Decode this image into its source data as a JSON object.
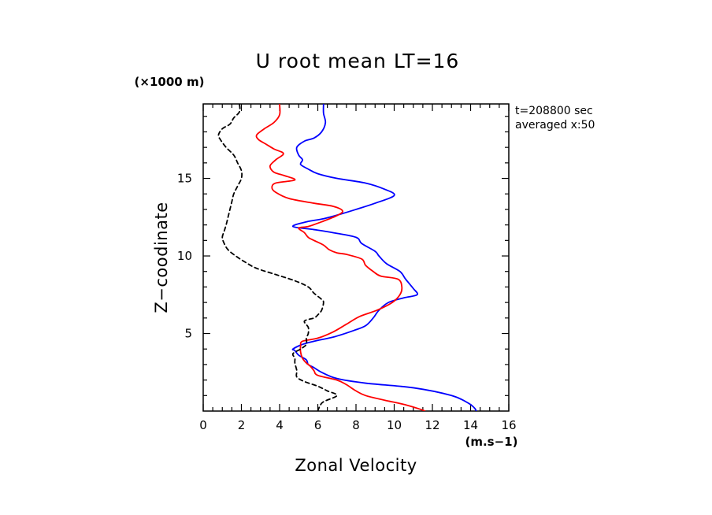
{
  "chart_data": {
    "type": "line",
    "title": "U root mean LT=16",
    "xlabel": "Zonal Velocity",
    "ylabel": "Z−coodinate",
    "x_unit": "(m.s−1)",
    "y_unit": "(×1000 m)",
    "xlim": [
      0,
      16
    ],
    "ylim": [
      0,
      19.8
    ],
    "x_ticks": [
      0,
      2,
      4,
      6,
      8,
      10,
      12,
      14,
      16
    ],
    "y_ticks": [
      5,
      10,
      15
    ],
    "annotations": [
      "t=208800 sec",
      "averaged  x:50"
    ],
    "series": [
      {
        "color": "#0000ff",
        "dash": "solid",
        "points": [
          [
            14.3,
            0.0
          ],
          [
            14.2,
            0.2
          ],
          [
            13.9,
            0.5
          ],
          [
            13.0,
            1.0
          ],
          [
            11.0,
            1.5
          ],
          [
            8.5,
            1.8
          ],
          [
            7.0,
            2.1
          ],
          [
            6.2,
            2.5
          ],
          [
            5.8,
            2.8
          ],
          [
            5.5,
            3.0
          ],
          [
            5.4,
            3.3
          ],
          [
            5.0,
            3.6
          ],
          [
            4.8,
            3.9
          ],
          [
            4.7,
            4.0
          ],
          [
            5.2,
            4.3
          ],
          [
            5.8,
            4.5
          ],
          [
            6.9,
            4.8
          ],
          [
            7.9,
            5.2
          ],
          [
            8.5,
            5.5
          ],
          [
            8.9,
            6.0
          ],
          [
            9.2,
            6.5
          ],
          [
            9.7,
            7.0
          ],
          [
            10.5,
            7.3
          ],
          [
            11.2,
            7.5
          ],
          [
            11.0,
            7.9
          ],
          [
            10.6,
            8.5
          ],
          [
            10.3,
            9.0
          ],
          [
            9.6,
            9.5
          ],
          [
            9.2,
            10.0
          ],
          [
            9.0,
            10.3
          ],
          [
            8.3,
            10.8
          ],
          [
            8.0,
            11.2
          ],
          [
            6.8,
            11.5
          ],
          [
            5.8,
            11.7
          ],
          [
            4.7,
            11.9
          ],
          [
            5.4,
            12.2
          ],
          [
            6.3,
            12.4
          ],
          [
            7.2,
            12.7
          ],
          [
            8.0,
            13.0
          ],
          [
            9.0,
            13.4
          ],
          [
            10.0,
            13.9
          ],
          [
            9.5,
            14.3
          ],
          [
            8.5,
            14.7
          ],
          [
            7.0,
            15.0
          ],
          [
            6.0,
            15.3
          ],
          [
            5.5,
            15.6
          ],
          [
            5.1,
            15.9
          ],
          [
            5.2,
            16.2
          ],
          [
            5.0,
            16.5
          ],
          [
            4.9,
            17.0
          ],
          [
            5.3,
            17.4
          ],
          [
            5.8,
            17.6
          ],
          [
            6.2,
            18.0
          ],
          [
            6.4,
            18.6
          ],
          [
            6.3,
            19.2
          ],
          [
            6.3,
            19.8
          ]
        ]
      },
      {
        "color": "#ff0000",
        "dash": "solid",
        "points": [
          [
            11.6,
            0.0
          ],
          [
            11.4,
            0.1
          ],
          [
            10.6,
            0.4
          ],
          [
            9.5,
            0.7
          ],
          [
            8.5,
            1.0
          ],
          [
            8.0,
            1.3
          ],
          [
            7.5,
            1.7
          ],
          [
            7.0,
            2.0
          ],
          [
            6.0,
            2.3
          ],
          [
            5.8,
            2.6
          ],
          [
            5.6,
            2.9
          ],
          [
            5.4,
            3.1
          ],
          [
            5.2,
            3.4
          ],
          [
            5.1,
            3.8
          ],
          [
            5.1,
            4.2
          ],
          [
            5.2,
            4.5
          ],
          [
            6.0,
            4.7
          ],
          [
            6.8,
            5.1
          ],
          [
            7.5,
            5.6
          ],
          [
            8.2,
            6.1
          ],
          [
            9.1,
            6.5
          ],
          [
            9.9,
            7.0
          ],
          [
            10.3,
            7.5
          ],
          [
            10.4,
            8.0
          ],
          [
            10.2,
            8.5
          ],
          [
            9.3,
            8.7
          ],
          [
            8.9,
            9.0
          ],
          [
            8.5,
            9.4
          ],
          [
            8.3,
            9.8
          ],
          [
            7.5,
            10.1
          ],
          [
            7.0,
            10.2
          ],
          [
            6.6,
            10.4
          ],
          [
            6.3,
            10.7
          ],
          [
            5.8,
            11.0
          ],
          [
            5.5,
            11.2
          ],
          [
            5.3,
            11.5
          ],
          [
            5.0,
            11.8
          ],
          [
            5.5,
            11.9
          ],
          [
            6.2,
            12.2
          ],
          [
            7.0,
            12.6
          ],
          [
            7.3,
            12.9
          ],
          [
            6.8,
            13.2
          ],
          [
            5.8,
            13.4
          ],
          [
            4.5,
            13.7
          ],
          [
            3.8,
            14.1
          ],
          [
            3.6,
            14.4
          ],
          [
            3.8,
            14.7
          ],
          [
            4.8,
            14.9
          ],
          [
            4.2,
            15.2
          ],
          [
            3.7,
            15.4
          ],
          [
            3.5,
            15.8
          ],
          [
            3.8,
            16.2
          ],
          [
            4.2,
            16.6
          ],
          [
            3.7,
            16.9
          ],
          [
            3.3,
            17.2
          ],
          [
            2.9,
            17.5
          ],
          [
            2.8,
            17.8
          ],
          [
            3.2,
            18.2
          ],
          [
            3.7,
            18.6
          ],
          [
            4.0,
            19.1
          ],
          [
            4.0,
            19.8
          ]
        ]
      },
      {
        "color": "#000000",
        "dash": "dashed",
        "points": [
          [
            6.0,
            0.0
          ],
          [
            6.1,
            0.3
          ],
          [
            6.3,
            0.6
          ],
          [
            7.0,
            1.0
          ],
          [
            6.5,
            1.3
          ],
          [
            6.0,
            1.6
          ],
          [
            5.3,
            1.9
          ],
          [
            4.9,
            2.2
          ],
          [
            4.9,
            2.6
          ],
          [
            4.8,
            3.1
          ],
          [
            4.8,
            3.4
          ],
          [
            4.7,
            3.7
          ],
          [
            5.1,
            4.0
          ],
          [
            5.4,
            4.3
          ],
          [
            5.4,
            4.7
          ],
          [
            5.5,
            5.0
          ],
          [
            5.5,
            5.4
          ],
          [
            5.3,
            5.8
          ],
          [
            5.8,
            6.0
          ],
          [
            6.0,
            6.2
          ],
          [
            6.2,
            6.5
          ],
          [
            6.3,
            7.0
          ],
          [
            6.2,
            7.2
          ],
          [
            5.8,
            7.6
          ],
          [
            5.5,
            8.0
          ],
          [
            4.8,
            8.4
          ],
          [
            3.8,
            8.8
          ],
          [
            2.8,
            9.2
          ],
          [
            2.2,
            9.6
          ],
          [
            1.7,
            10.0
          ],
          [
            1.3,
            10.4
          ],
          [
            1.1,
            10.8
          ],
          [
            1.0,
            11.2
          ],
          [
            1.1,
            11.6
          ],
          [
            1.2,
            12.0
          ],
          [
            1.3,
            12.5
          ],
          [
            1.4,
            13.0
          ],
          [
            1.5,
            13.5
          ],
          [
            1.6,
            14.0
          ],
          [
            1.8,
            14.5
          ],
          [
            2.0,
            15.0
          ],
          [
            2.0,
            15.5
          ],
          [
            1.8,
            16.0
          ],
          [
            1.6,
            16.5
          ],
          [
            1.2,
            17.0
          ],
          [
            0.9,
            17.5
          ],
          [
            0.8,
            17.8
          ],
          [
            1.0,
            18.2
          ],
          [
            1.4,
            18.5
          ],
          [
            1.6,
            18.9
          ],
          [
            1.9,
            19.3
          ],
          [
            1.9,
            19.8
          ]
        ]
      }
    ]
  }
}
